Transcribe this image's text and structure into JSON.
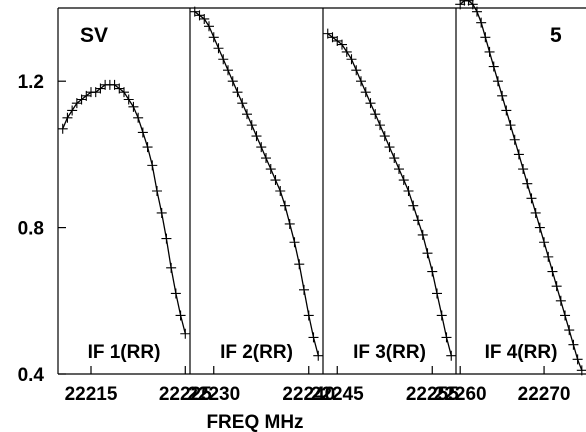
{
  "chart_data": {
    "type": "line",
    "title": "",
    "xlabel": "FREQ MHz",
    "ylabel": "",
    "source_label": "SV",
    "channel_label": "5",
    "ylim": [
      0.4,
      1.4
    ],
    "yticks": [
      {
        "value": 0.4,
        "label": "0.4"
      },
      {
        "value": 0.8,
        "label": "0.8"
      },
      {
        "value": 1.2,
        "label": "1.2"
      }
    ],
    "grid": false,
    "colors": {
      "line": "#000000",
      "marker": "#000000"
    },
    "panels": [
      {
        "name": "IF 1(RR)",
        "xlim": [
          22211.5,
          22225.5
        ],
        "xticks": [
          {
            "value": 22215,
            "label": "22215"
          },
          {
            "value": 22225,
            "label": "22225"
          }
        ],
        "x": [
          22212,
          22212.5,
          22213,
          22213.5,
          22214,
          22214.5,
          22215,
          22215.5,
          22216,
          22216.5,
          22217,
          22217.5,
          22218,
          22218.5,
          22219,
          22219.5,
          22220,
          22220.5,
          22221,
          22221.5,
          22222,
          22222.5,
          22223,
          22223.5,
          22224,
          22224.5,
          22225
        ],
        "y": [
          1.07,
          1.1,
          1.12,
          1.14,
          1.15,
          1.16,
          1.17,
          1.17,
          1.18,
          1.19,
          1.19,
          1.19,
          1.18,
          1.17,
          1.15,
          1.13,
          1.1,
          1.06,
          1.02,
          0.97,
          0.9,
          0.84,
          0.77,
          0.69,
          0.62,
          0.56,
          0.51
        ]
      },
      {
        "name": "IF 2(RR)",
        "xlim": [
          22227.5,
          22241.5
        ],
        "xticks": [
          {
            "value": 22230,
            "label": "22230"
          },
          {
            "value": 22240,
            "label": "22240"
          }
        ],
        "x": [
          22228,
          22228.5,
          22229,
          22229.5,
          22230,
          22230.5,
          22231,
          22231.5,
          22232,
          22232.5,
          22233,
          22233.5,
          22234,
          22234.5,
          22235,
          22235.5,
          22236,
          22236.5,
          22237,
          22237.5,
          22238,
          22238.5,
          22239,
          22239.5,
          22240,
          22240.5,
          22241
        ],
        "y": [
          1.39,
          1.38,
          1.37,
          1.35,
          1.32,
          1.29,
          1.26,
          1.23,
          1.2,
          1.17,
          1.14,
          1.11,
          1.08,
          1.05,
          1.02,
          0.99,
          0.96,
          0.93,
          0.9,
          0.86,
          0.81,
          0.76,
          0.7,
          0.63,
          0.56,
          0.5,
          0.45
        ]
      },
      {
        "name": "IF 3(RR)",
        "xlim": [
          22243.5,
          22257.5
        ],
        "xticks": [
          {
            "value": 22245,
            "label": "22245"
          },
          {
            "value": 22255,
            "label": "22255"
          }
        ],
        "x": [
          22244,
          22244.5,
          22245,
          22245.5,
          22246,
          22246.5,
          22247,
          22247.5,
          22248,
          22248.5,
          22249,
          22249.5,
          22250,
          22250.5,
          22251,
          22251.5,
          22252,
          22252.5,
          22253,
          22253.5,
          22254,
          22254.5,
          22255,
          22255.5,
          22256,
          22256.5,
          22257
        ],
        "y": [
          1.33,
          1.32,
          1.31,
          1.3,
          1.28,
          1.26,
          1.23,
          1.2,
          1.17,
          1.14,
          1.11,
          1.08,
          1.05,
          1.02,
          0.99,
          0.96,
          0.93,
          0.9,
          0.86,
          0.82,
          0.78,
          0.73,
          0.68,
          0.62,
          0.56,
          0.5,
          0.45
        ]
      },
      {
        "name": "IF 4(RR)",
        "xlim": [
          22259.5,
          22275
        ],
        "xticks": [
          {
            "value": 22260,
            "label": "22260"
          },
          {
            "value": 22270,
            "label": "22270"
          }
        ],
        "x": [
          22260,
          22260.5,
          22261,
          22261.5,
          22262,
          22262.5,
          22263,
          22263.5,
          22264,
          22264.5,
          22265,
          22265.5,
          22266,
          22266.5,
          22267,
          22267.5,
          22268,
          22268.5,
          22269,
          22269.5,
          22270,
          22270.5,
          22271,
          22271.5,
          22272,
          22272.5,
          22273,
          22273.5,
          22274,
          22274.5
        ],
        "y": [
          1.41,
          1.42,
          1.42,
          1.41,
          1.39,
          1.36,
          1.32,
          1.28,
          1.24,
          1.2,
          1.16,
          1.12,
          1.08,
          1.04,
          1.0,
          0.96,
          0.92,
          0.88,
          0.84,
          0.8,
          0.76,
          0.72,
          0.68,
          0.64,
          0.6,
          0.56,
          0.52,
          0.48,
          0.44,
          0.41
        ]
      }
    ]
  }
}
